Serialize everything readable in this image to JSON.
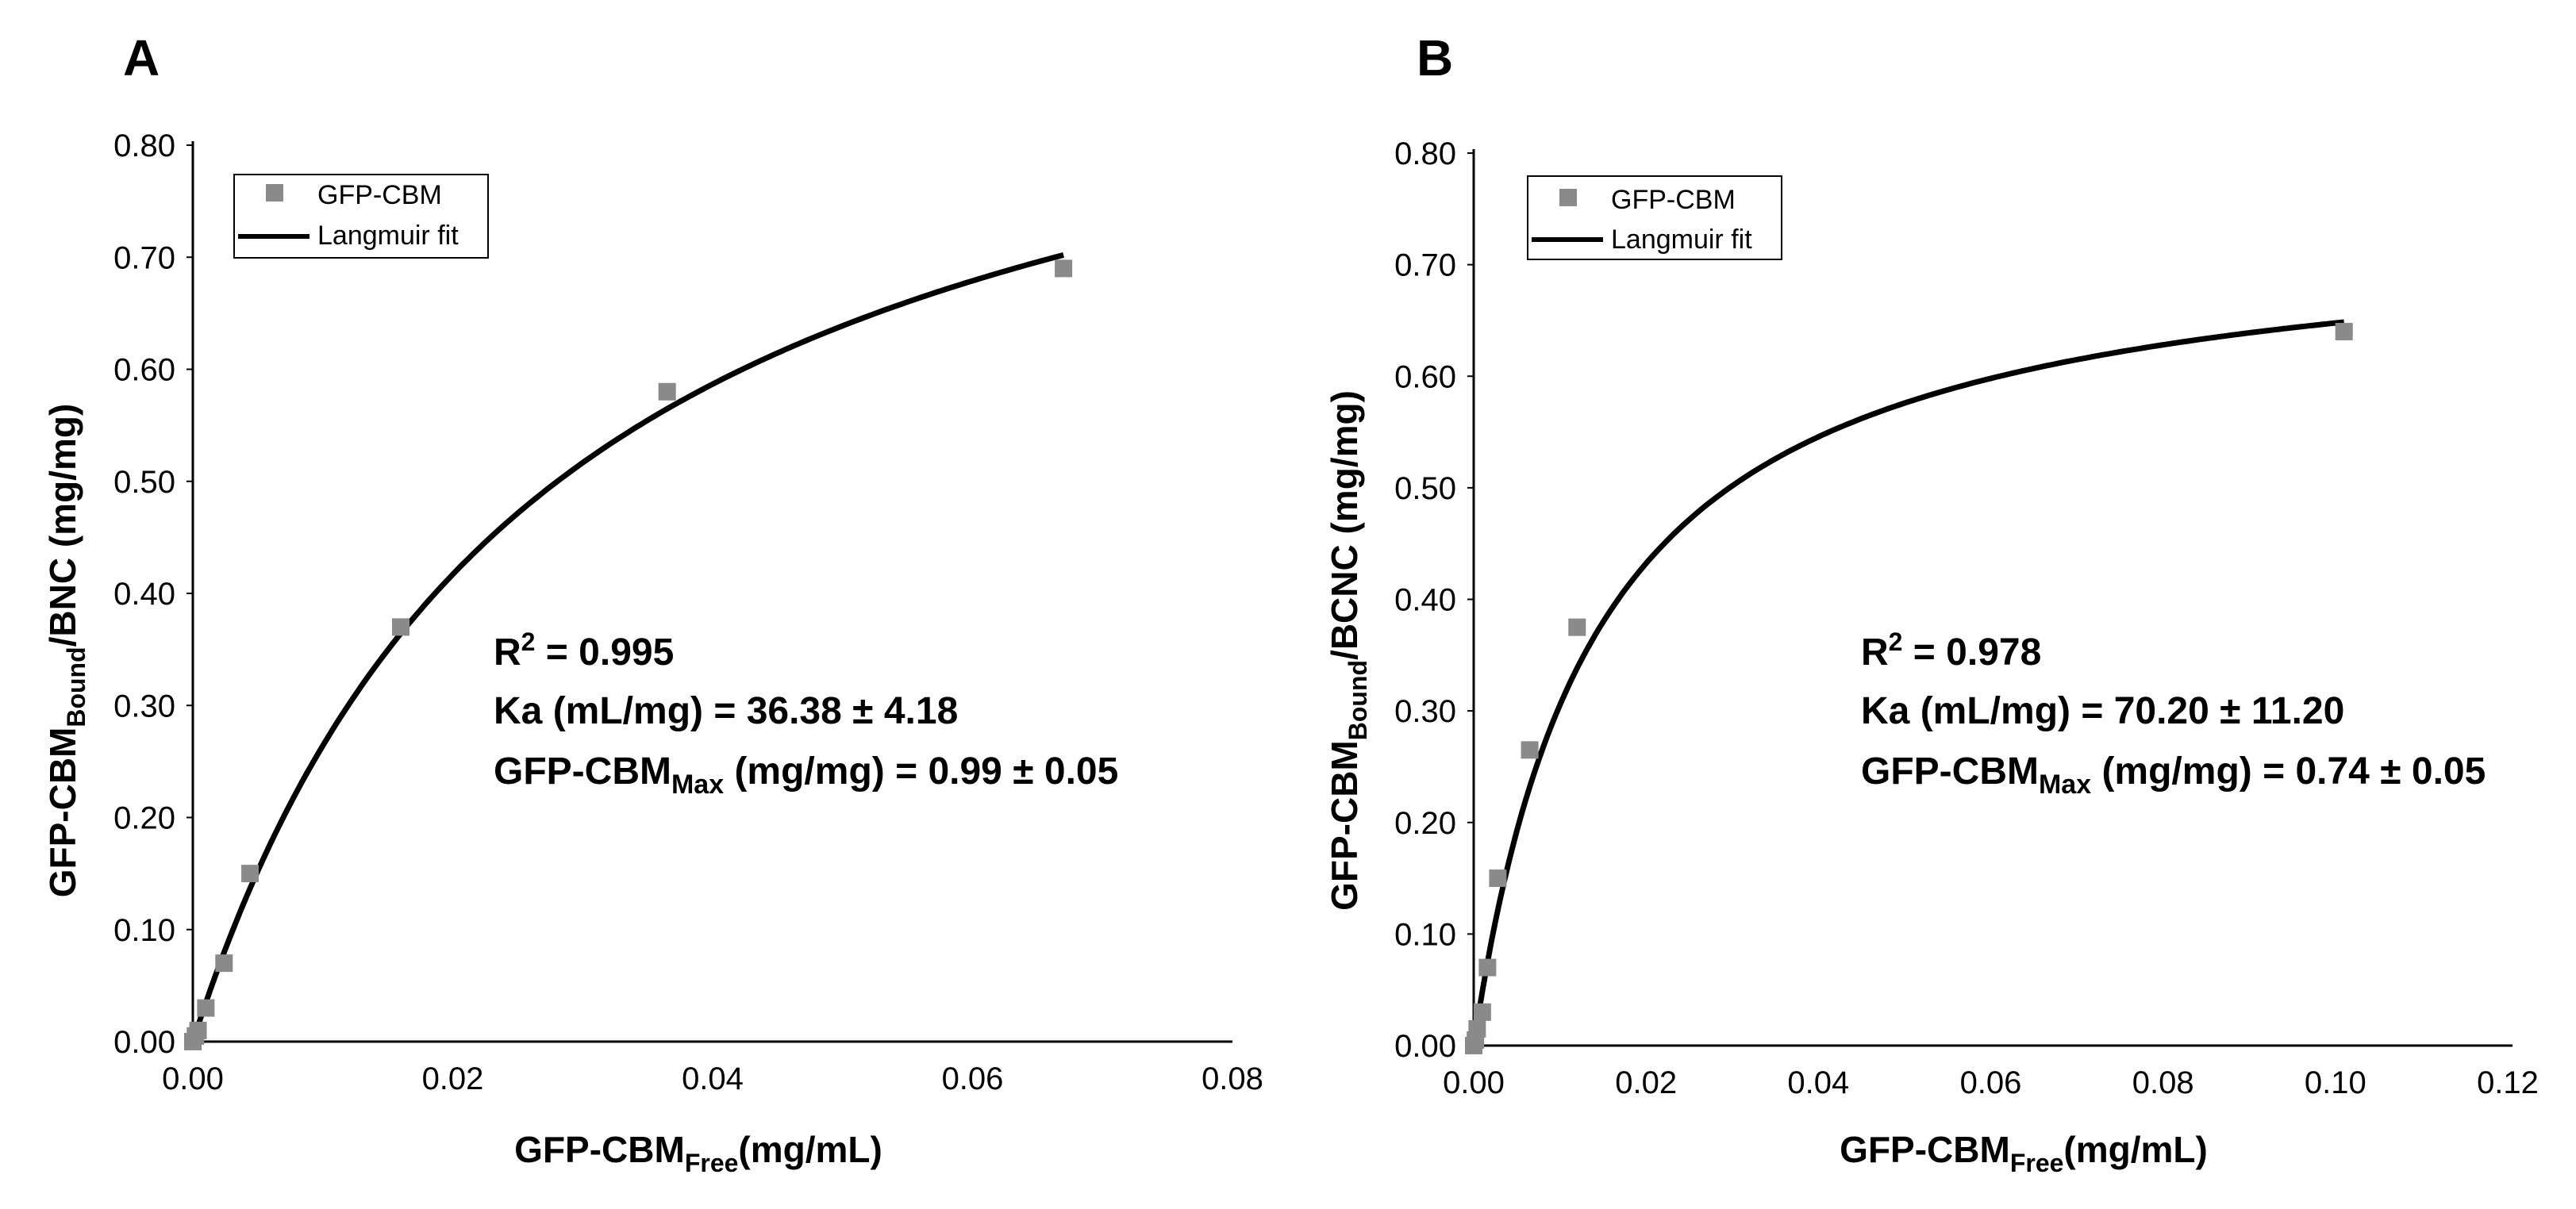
{
  "chart_data": [
    {
      "panel": "A",
      "type": "scatter",
      "x": [
        0.0,
        0.0002,
        0.0004,
        0.001,
        0.0024,
        0.0044,
        0.016,
        0.0365,
        0.067
      ],
      "y": [
        0.0,
        0.005,
        0.01,
        0.03,
        0.07,
        0.15,
        0.37,
        0.58,
        0.69
      ],
      "fit": {
        "name": "Langmuir fit",
        "qmax": 0.99,
        "ka": 36.38,
        "x_range": [
          0.0,
          0.067
        ]
      },
      "xlim": [
        0.0,
        0.08
      ],
      "ylim": [
        0.0,
        0.8
      ],
      "x_ticks": [
        "0.00",
        "0.02",
        "0.04",
        "0.06",
        "0.08"
      ],
      "y_ticks": [
        "0.00",
        "0.10",
        "0.20",
        "0.30",
        "0.40",
        "0.50",
        "0.60",
        "0.70",
        "0.80"
      ],
      "xlabel": {
        "main": "GFP-CBM",
        "sub": "Free",
        "tail": "(mg/mL)"
      },
      "ylabel": {
        "main": "GFP-CBM",
        "sub": "Bound",
        "tail": "/BNC  (mg/mg)"
      },
      "legend": {
        "points": "GFP-CBM",
        "line": "Langmuir fit",
        "position": "top-left"
      },
      "annotation": {
        "r2_prefix": "R",
        "r2_sup": "2",
        "r2_value": " = 0.995",
        "ka": "Ka (mL/mg) = 36.38 ± 4.18",
        "max_main": "GFP-CBM",
        "max_sub": "Max",
        "max_tail": " (mg/mg) = 0.99 ± 0.05"
      }
    },
    {
      "panel": "B",
      "type": "scatter",
      "x": [
        0.0,
        0.0002,
        0.0004,
        0.001,
        0.0016,
        0.0028,
        0.0065,
        0.012,
        0.101
      ],
      "y": [
        0.0,
        0.005,
        0.015,
        0.03,
        0.07,
        0.15,
        0.265,
        0.375,
        0.64
      ],
      "fit": {
        "name": "Langmuir fit",
        "qmax": 0.74,
        "ka": 70.2,
        "x_range": [
          0.0,
          0.101
        ]
      },
      "xlim": [
        0.0,
        0.12
      ],
      "ylim": [
        0.0,
        0.8
      ],
      "x_ticks": [
        "0.00",
        "0.02",
        "0.04",
        "0.06",
        "0.08",
        "0.10",
        "0.12"
      ],
      "y_ticks": [
        "0.00",
        "0.10",
        "0.20",
        "0.30",
        "0.40",
        "0.50",
        "0.60",
        "0.70",
        "0.80"
      ],
      "xlabel": {
        "main": "GFP-CBM",
        "sub": "Free",
        "tail": "(mg/mL)"
      },
      "ylabel": {
        "main": "GFP-CBM",
        "sub": "Bound",
        "tail": "/BCNC  (mg/mg)"
      },
      "legend": {
        "points": "GFP-CBM",
        "line": "Langmuir fit",
        "position": "top-left"
      },
      "annotation": {
        "r2_prefix": "R",
        "r2_sup": "2",
        "r2_value": " = 0.978",
        "ka": "Ka (mL/mg) = 70.20 ± 11.20",
        "max_main": "GFP-CBM",
        "max_sub": "Max",
        "max_tail": " (mg/mg) = 0.74 ± 0.05"
      }
    }
  ]
}
